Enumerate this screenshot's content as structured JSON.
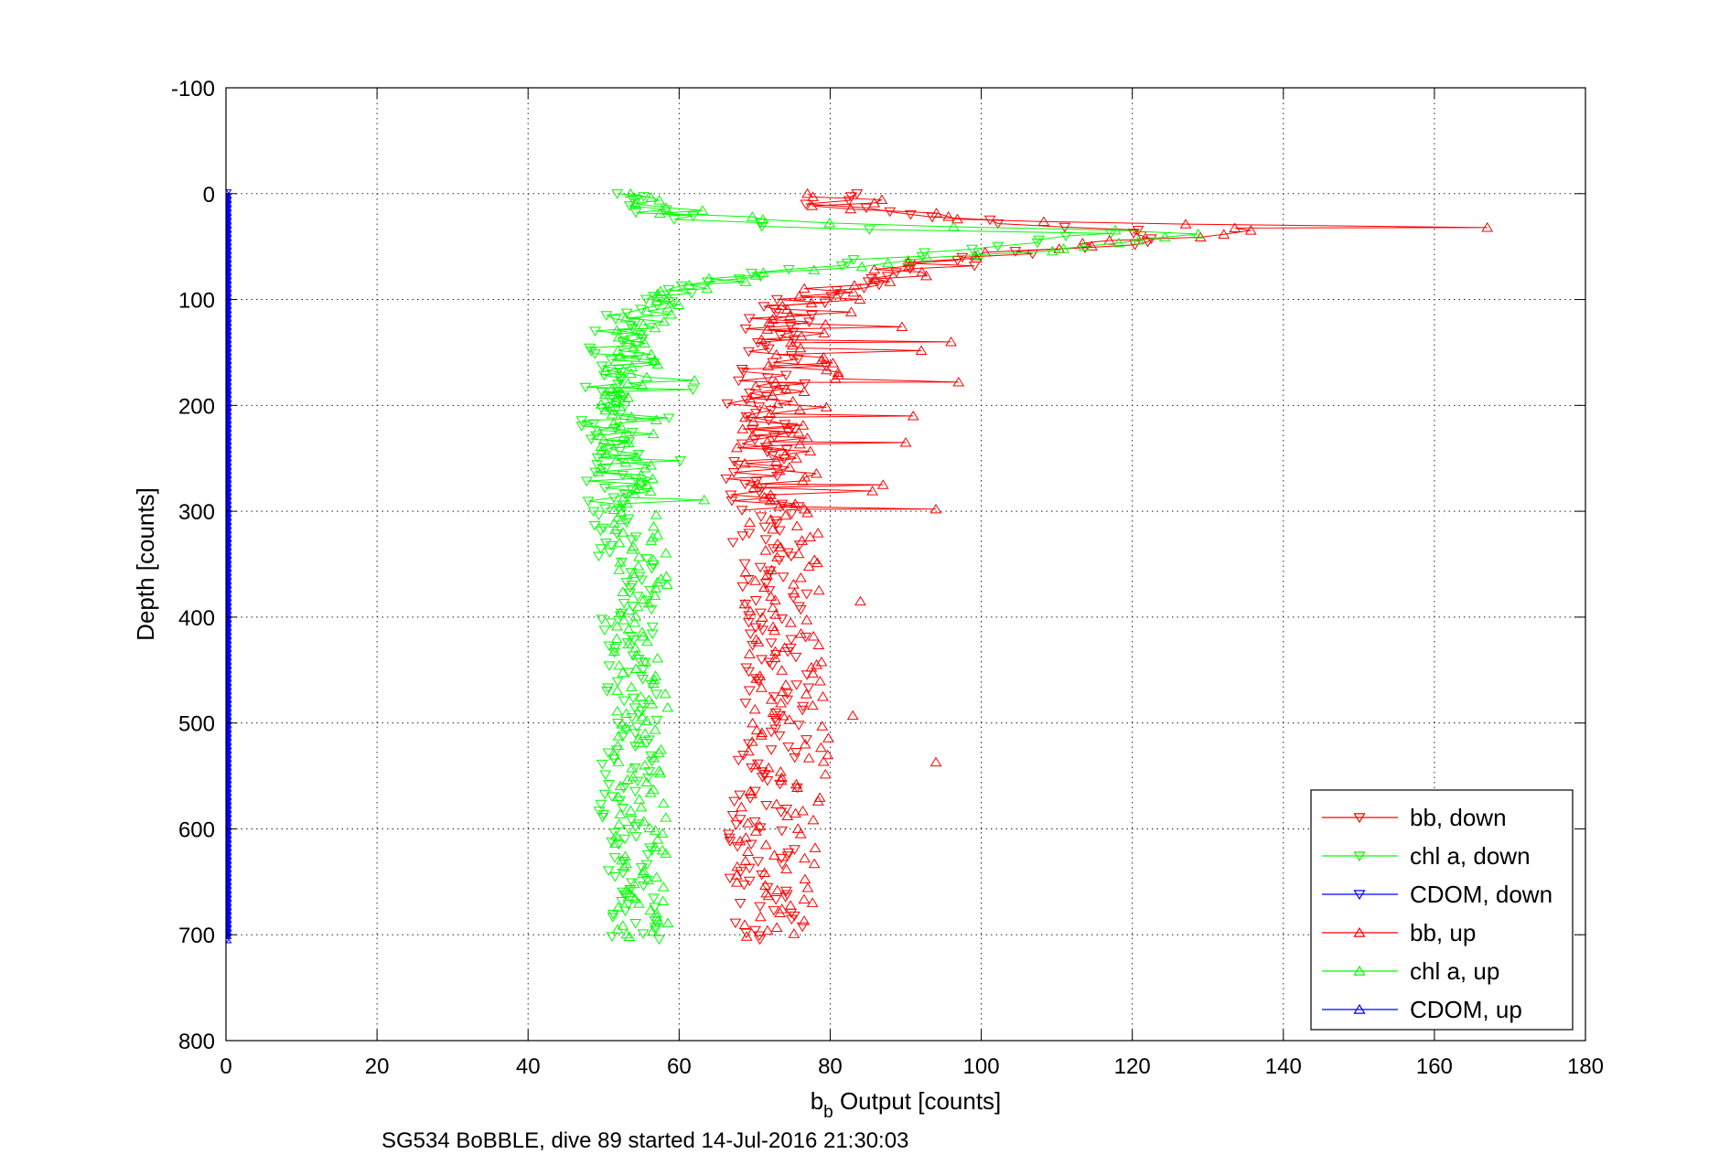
{
  "chart_data": {
    "type": "scatter",
    "title": "",
    "xlabel_main": "b",
    "xlabel_sub": "b",
    "xlabel_rest": " Output [counts]",
    "ylabel": "Depth [counts]",
    "caption": "SG534 BoBBLE, dive 89 started 14-Jul-2016 21:30:03",
    "xlim": [
      0,
      180
    ],
    "ylim": [
      -100,
      800
    ],
    "y_reversed": true,
    "grid": true,
    "legend_position": "bottom-right",
    "x_ticks": [
      "0",
      "20",
      "40",
      "60",
      "80",
      "100",
      "120",
      "140",
      "160",
      "180"
    ],
    "y_ticks": [
      "-100",
      "0",
      "100",
      "200",
      "300",
      "400",
      "500",
      "600",
      "700",
      "800"
    ],
    "series": [
      {
        "name": "bb, down",
        "color": "#ff0000",
        "marker": "triangle-down",
        "connected_depth_range": [
          0,
          300
        ],
        "profile": [
          [
            0,
            82
          ],
          [
            10,
            80
          ],
          [
            20,
            88
          ],
          [
            30,
            110
          ],
          [
            40,
            125
          ],
          [
            50,
            115
          ],
          [
            60,
            100
          ],
          [
            70,
            92
          ],
          [
            80,
            85
          ],
          [
            90,
            80
          ],
          [
            100,
            76
          ],
          [
            120,
            74
          ],
          [
            150,
            73
          ],
          [
            200,
            71
          ],
          [
            250,
            70
          ],
          [
            300,
            71
          ],
          [
            350,
            72
          ],
          [
            400,
            73
          ],
          [
            450,
            73
          ],
          [
            500,
            73
          ],
          [
            550,
            72
          ],
          [
            600,
            71
          ],
          [
            650,
            71
          ],
          [
            700,
            72
          ]
        ],
        "spread": 5
      },
      {
        "name": "chl a, down",
        "color": "#00ff00",
        "marker": "triangle-down",
        "connected_depth_range": [
          0,
          300
        ],
        "profile": [
          [
            0,
            54
          ],
          [
            10,
            55
          ],
          [
            20,
            58
          ],
          [
            30,
            70
          ],
          [
            40,
            110
          ],
          [
            50,
            100
          ],
          [
            60,
            88
          ],
          [
            70,
            78
          ],
          [
            80,
            68
          ],
          [
            90,
            62
          ],
          [
            100,
            56
          ],
          [
            120,
            53
          ],
          [
            150,
            52
          ],
          [
            200,
            51
          ],
          [
            250,
            51
          ],
          [
            300,
            52
          ],
          [
            350,
            53
          ],
          [
            400,
            53
          ],
          [
            450,
            54
          ],
          [
            500,
            54
          ],
          [
            550,
            53
          ],
          [
            600,
            53
          ],
          [
            650,
            53
          ],
          [
            700,
            54
          ]
        ],
        "spread": 4
      },
      {
        "name": "CDOM, down",
        "color": "#0000ff",
        "marker": "triangle-down",
        "connected_depth_range": [
          0,
          300
        ],
        "profile": [
          [
            0,
            0
          ],
          [
            705,
            0
          ]
        ],
        "spread": 0
      },
      {
        "name": "bb, up",
        "color": "#ff0000",
        "marker": "triangle-up",
        "connected_depth_range": [
          0,
          300
        ],
        "profile": [
          [
            0,
            82
          ],
          [
            10,
            82
          ],
          [
            20,
            90
          ],
          [
            30,
            120
          ],
          [
            35,
            140
          ],
          [
            40,
            125
          ],
          [
            50,
            112
          ],
          [
            60,
            100
          ],
          [
            70,
            92
          ],
          [
            80,
            86
          ],
          [
            90,
            82
          ],
          [
            100,
            79
          ],
          [
            150,
            76
          ],
          [
            200,
            74
          ],
          [
            250,
            73
          ],
          [
            300,
            74
          ],
          [
            350,
            74
          ],
          [
            400,
            74
          ],
          [
            450,
            75
          ],
          [
            500,
            75
          ],
          [
            550,
            74
          ],
          [
            600,
            73
          ],
          [
            650,
            73
          ],
          [
            700,
            73
          ]
        ],
        "spread": 6,
        "outliers": [
          [
            32,
            167
          ],
          [
            140,
            96
          ],
          [
            178,
            97
          ],
          [
            210,
            91
          ],
          [
            235,
            90
          ],
          [
            275,
            87
          ],
          [
            298,
            94
          ],
          [
            537,
            94
          ],
          [
            493,
            83
          ],
          [
            385,
            84
          ]
        ]
      },
      {
        "name": "chl a, up",
        "color": "#00ff00",
        "marker": "triangle-up",
        "connected_depth_range": [
          0,
          300
        ],
        "profile": [
          [
            0,
            55
          ],
          [
            10,
            56
          ],
          [
            20,
            62
          ],
          [
            30,
            90
          ],
          [
            35,
            125
          ],
          [
            40,
            130
          ],
          [
            50,
            110
          ],
          [
            60,
            95
          ],
          [
            70,
            80
          ],
          [
            80,
            68
          ],
          [
            90,
            60
          ],
          [
            100,
            56
          ],
          [
            150,
            54
          ],
          [
            200,
            53
          ],
          [
            250,
            53
          ],
          [
            300,
            54
          ],
          [
            350,
            55
          ],
          [
            400,
            55
          ],
          [
            450,
            55
          ],
          [
            500,
            55
          ],
          [
            550,
            55
          ],
          [
            600,
            55
          ],
          [
            650,
            55
          ],
          [
            700,
            55
          ]
        ],
        "spread": 4
      },
      {
        "name": "CDOM, up",
        "color": "#0000ff",
        "marker": "triangle-up",
        "connected_depth_range": [
          0,
          300
        ],
        "profile": [
          [
            0,
            0
          ],
          [
            705,
            0
          ]
        ],
        "spread": 0
      }
    ]
  }
}
